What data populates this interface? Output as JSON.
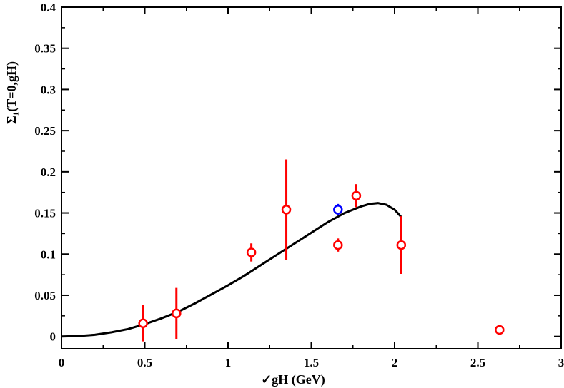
{
  "chart_data": {
    "type": "scatter",
    "xlabel": "✓gH  (GeV)",
    "ylabel": "Σ₁(T=0,gH)",
    "xlim": [
      0,
      3
    ],
    "ylim": [
      -0.015,
      0.4
    ],
    "xticks": [
      "0",
      "0.5",
      "1",
      "1.5",
      "2",
      "2.5",
      "3"
    ],
    "xtick_values": [
      0,
      0.5,
      1,
      1.5,
      2,
      2.5,
      3
    ],
    "yticks": [
      "0",
      "0.05",
      "0.1",
      "0.15",
      "0.2",
      "0.25",
      "0.3",
      "0.35",
      "0.4"
    ],
    "ytick_values": [
      0,
      0.05,
      0.1,
      0.15,
      0.2,
      0.25,
      0.3,
      0.35,
      0.4
    ],
    "grid": false,
    "legend": "none",
    "series": [
      {
        "kind": "points",
        "color": "#ff0000",
        "points": [
          {
            "x": 0.49,
            "y": 0.016,
            "err": 0.022
          },
          {
            "x": 0.69,
            "y": 0.028,
            "err": 0.031
          },
          {
            "x": 1.14,
            "y": 0.102,
            "err": 0.011
          },
          {
            "x": 1.35,
            "y": 0.154,
            "err": 0.061
          },
          {
            "x": 1.66,
            "y": 0.111,
            "err": 0.008
          },
          {
            "x": 1.77,
            "y": 0.171,
            "err": 0.014
          },
          {
            "x": 2.04,
            "y": 0.111,
            "err": 0.035
          },
          {
            "x": 2.63,
            "y": 0.008,
            "err": 0.0
          }
        ]
      },
      {
        "kind": "points",
        "color": "#0000ff",
        "points": [
          {
            "x": 1.66,
            "y": 0.154,
            "err": 0.007
          }
        ]
      },
      {
        "kind": "curve",
        "color": "#000000",
        "x": [
          0,
          0.1,
          0.2,
          0.3,
          0.4,
          0.5,
          0.6,
          0.7,
          0.8,
          0.9,
          1.0,
          1.1,
          1.2,
          1.3,
          1.4,
          1.5,
          1.6,
          1.7,
          1.8,
          1.85,
          1.9,
          1.95,
          2.0,
          2.04
        ],
        "y": [
          0,
          0.0005,
          0.002,
          0.005,
          0.009,
          0.015,
          0.022,
          0.03,
          0.04,
          0.051,
          0.062,
          0.074,
          0.087,
          0.1,
          0.113,
          0.126,
          0.139,
          0.15,
          0.158,
          0.161,
          0.162,
          0.16,
          0.154,
          0.145
        ]
      }
    ]
  }
}
